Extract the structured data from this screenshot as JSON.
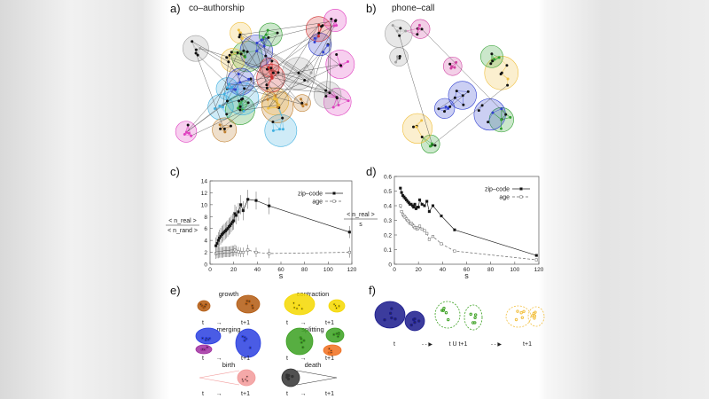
{
  "panels": {
    "a": {
      "letter": "a)",
      "title": "co–authorship"
    },
    "b": {
      "letter": "b)",
      "title": "phone–call"
    },
    "c": {
      "letter": "c)"
    },
    "d": {
      "letter": "d)"
    },
    "e": {
      "letter": "e)",
      "events": [
        {
          "name": "growth",
          "color": "#b35a10"
        },
        {
          "name": "contraction",
          "color": "#f5d800"
        },
        {
          "name": "merging",
          "color": "#2a3fe0"
        },
        {
          "name": "splitting",
          "color": "#3aa020"
        },
        {
          "name": "birth",
          "color": "#f29a9a"
        },
        {
          "name": "death",
          "color": "#333333"
        }
      ],
      "t": "t",
      "t1": "t+1"
    },
    "f": {
      "letter": "f)",
      "labels": [
        "t",
        "t U t+1",
        "t+1"
      ],
      "colors": [
        "#1a1a8c",
        "#3aa020",
        "#f2c040"
      ]
    }
  },
  "chart_data": [
    {
      "type": "line",
      "panel": "c",
      "xlabel": "s",
      "ylabel_num": "< n_real >",
      "ylabel_den": "< n_rand >",
      "xlim": [
        0,
        120
      ],
      "ylim": [
        0,
        14
      ],
      "xticks": [
        0,
        20,
        40,
        60,
        80,
        100,
        120
      ],
      "yticks": [
        0,
        2,
        4,
        6,
        8,
        10,
        12,
        14
      ],
      "legend": "top-right",
      "series": [
        {
          "name": "zip–code",
          "style": "solid-filled-square",
          "x": [
            5,
            6,
            7,
            8,
            9,
            10,
            11,
            12,
            13,
            14,
            15,
            16,
            17,
            18,
            19,
            20,
            21,
            22,
            24,
            26,
            28,
            32,
            39,
            50,
            118
          ],
          "y": [
            3.1,
            3.5,
            4.0,
            4.4,
            4.7,
            5.0,
            5.2,
            5.4,
            5.6,
            5.8,
            6.0,
            6.3,
            6.5,
            6.8,
            7.1,
            7.3,
            8.5,
            8.2,
            8.8,
            10.0,
            9.0,
            10.9,
            10.7,
            9.8,
            5.4
          ],
          "err": [
            1.4,
            1.4,
            1.4,
            1.4,
            1.4,
            1.4,
            1.4,
            1.4,
            1.4,
            1.4,
            1.4,
            1.4,
            1.4,
            1.4,
            1.4,
            1.5,
            1.5,
            1.5,
            1.5,
            1.6,
            1.6,
            1.6,
            1.5,
            1.4,
            1.0
          ]
        },
        {
          "name": "age",
          "style": "dashed-open-square",
          "x": [
            5,
            6,
            7,
            8,
            9,
            10,
            11,
            12,
            13,
            14,
            15,
            16,
            17,
            18,
            19,
            20,
            21,
            22,
            24,
            26,
            28,
            32,
            39,
            50,
            118
          ],
          "y": [
            1.8,
            1.9,
            1.9,
            2.0,
            2.0,
            2.0,
            2.0,
            2.1,
            2.1,
            2.1,
            2.1,
            2.1,
            2.1,
            2.2,
            2.2,
            2.2,
            2.4,
            2.2,
            2.1,
            2.0,
            2.0,
            2.4,
            2.0,
            1.8,
            2.0
          ],
          "err": [
            0.9,
            0.9,
            0.9,
            0.9,
            0.9,
            0.9,
            0.9,
            0.9,
            0.9,
            0.9,
            0.9,
            0.9,
            0.9,
            0.9,
            0.9,
            0.9,
            0.9,
            0.9,
            0.8,
            0.8,
            0.8,
            0.9,
            0.8,
            0.8,
            0.9
          ]
        }
      ]
    },
    {
      "type": "line",
      "panel": "d",
      "xlabel": "s",
      "ylabel_num": "< n_real >",
      "ylabel_den": "s",
      "xlim": [
        0,
        120
      ],
      "ylim": [
        0,
        0.6
      ],
      "xticks": [
        0,
        20,
        40,
        60,
        80,
        100,
        120
      ],
      "yticks": [
        0,
        0.1,
        0.2,
        0.3,
        0.4,
        0.5,
        0.6
      ],
      "legend": "top-right",
      "series": [
        {
          "name": "zip–code",
          "style": "solid-filled-square",
          "x": [
            5,
            6,
            7,
            8,
            9,
            10,
            11,
            12,
            13,
            14,
            15,
            16,
            17,
            18,
            19,
            20,
            21,
            23,
            25,
            27,
            29,
            32,
            39,
            50,
            118
          ],
          "y": [
            0.52,
            0.49,
            0.47,
            0.46,
            0.45,
            0.44,
            0.43,
            0.42,
            0.41,
            0.41,
            0.4,
            0.39,
            0.41,
            0.38,
            0.39,
            0.39,
            0.44,
            0.41,
            0.4,
            0.43,
            0.36,
            0.4,
            0.33,
            0.235,
            0.06
          ]
        },
        {
          "name": "age",
          "style": "dashed-open-diamond",
          "x": [
            5,
            6,
            7,
            8,
            9,
            10,
            11,
            12,
            13,
            14,
            15,
            16,
            17,
            18,
            19,
            20,
            21,
            23,
            25,
            27,
            29,
            32,
            39,
            50,
            118
          ],
          "y": [
            0.4,
            0.36,
            0.34,
            0.33,
            0.32,
            0.31,
            0.3,
            0.29,
            0.28,
            0.28,
            0.27,
            0.26,
            0.25,
            0.25,
            0.24,
            0.25,
            0.26,
            0.24,
            0.23,
            0.21,
            0.17,
            0.19,
            0.14,
            0.09,
            0.03
          ]
        }
      ]
    }
  ]
}
